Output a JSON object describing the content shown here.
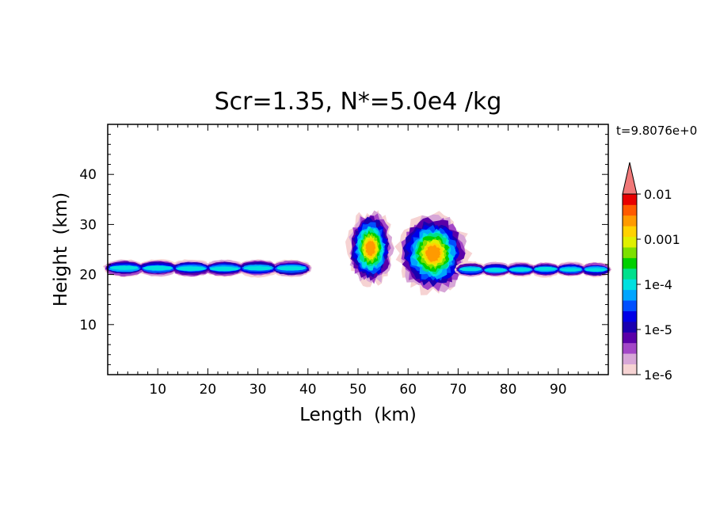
{
  "chart_data": {
    "type": "heatmap",
    "title": "Scr=1.35, N*=5.0e4 /kg",
    "xlabel": "Length  (km)",
    "ylabel": "Height  (km)",
    "time_label": "t=9.8076e+0",
    "xlim": [
      0,
      100
    ],
    "ylim": [
      0,
      50
    ],
    "x_ticks": [
      10,
      20,
      30,
      40,
      50,
      60,
      70,
      80,
      90
    ],
    "y_ticks": [
      10,
      20,
      30,
      40
    ],
    "grid": false,
    "colorbar": {
      "scale": "log",
      "range": [
        1e-06,
        0.01
      ],
      "extend": "max",
      "tick_labels": [
        "1e-6",
        "1e-5",
        "1e-4",
        "0.001",
        "0.01"
      ],
      "levels": [
        1e-06,
        1.78e-06,
        3.16e-06,
        5.62e-06,
        1e-05,
        1.78e-05,
        3.16e-05,
        5.62e-05,
        0.0001,
        0.000178,
        0.000316,
        0.000562,
        0.001,
        0.00178,
        0.00316,
        0.00562,
        0.01
      ],
      "colors": [
        "#f6d3d3",
        "#d7a6d7",
        "#a347c7",
        "#5a00a8",
        "#1a00b0",
        "#0000e6",
        "#0050ff",
        "#00a5ff",
        "#00e0e0",
        "#00e08c",
        "#00d000",
        "#7de000",
        "#e0f000",
        "#ffd200",
        "#ff9a00",
        "#ff5a00",
        "#e80000"
      ],
      "extend_color": "#f07878"
    },
    "regions": [
      {
        "name": "Left stratiform layer",
        "x": [
          0,
          40
        ],
        "y": [
          19.5,
          23
        ],
        "peak": "1e-4"
      },
      {
        "name": "Left convective cell",
        "x": [
          48,
          57
        ],
        "y": [
          18,
          32.5
        ],
        "peak": "0.003"
      },
      {
        "name": "Right convective cell",
        "x": [
          58,
          72
        ],
        "y": [
          16.5,
          32
        ],
        "peak": "0.003"
      },
      {
        "name": "Right stratiform layer",
        "x": [
          70,
          100
        ],
        "y": [
          19.5,
          22.5
        ],
        "peak": "1e-4"
      }
    ]
  }
}
